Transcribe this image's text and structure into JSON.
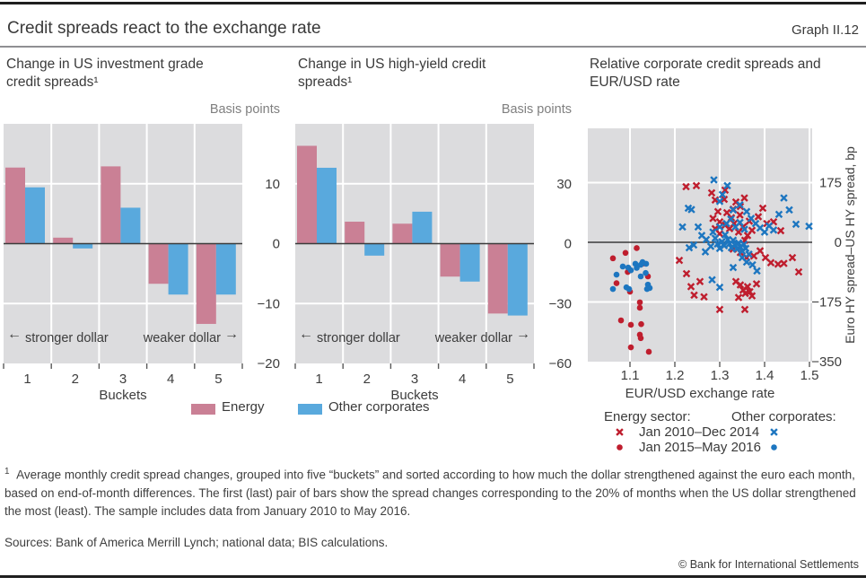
{
  "header": {
    "title": "Credit spreads react to the exchange rate",
    "graph_label": "Graph II.12"
  },
  "panels": [
    {
      "title": "Change in US investment grade credit spreads¹",
      "unit": "Basis points"
    },
    {
      "title": "Change in US high-yield credit spreads¹",
      "unit": "Basis points"
    },
    {
      "title": "Relative corporate credit spreads and EUR/USD rate"
    }
  ],
  "colors": {
    "bar_energy": "#ca8095",
    "bar_other": "#59a9dd",
    "scatter_energy": "#bf1e2e",
    "scatter_other": "#1d76c0",
    "plot_background": "#dcdcde",
    "gridline": "#ffffff",
    "zero_line": "#3a3a3a"
  },
  "chart_data": [
    {
      "type": "bar",
      "title": "Change in US investment grade credit spreads",
      "unit": "Basis points",
      "categories": [
        "1",
        "2",
        "3",
        "4",
        "5"
      ],
      "series": [
        {
          "name": "Energy",
          "color": "#ca8095",
          "values": [
            12.7,
            1,
            12.9,
            -6.7,
            -13.4
          ]
        },
        {
          "name": "Other corporates",
          "color": "#59a9dd",
          "values": [
            9.4,
            -0.8,
            6,
            -8.5,
            -8.5
          ]
        }
      ],
      "xlabel": "Buckets",
      "ylim": [
        -20,
        20
      ],
      "yticks": [
        10,
        0,
        -10,
        -20
      ],
      "annotations": {
        "left_arrow": "←",
        "left": "stronger dollar",
        "right": "weaker dollar",
        "right_arrow": "→"
      }
    },
    {
      "type": "bar",
      "title": "Change in US high-yield credit spreads",
      "unit": "Basis points",
      "categories": [
        "1",
        "2",
        "3",
        "4",
        "5"
      ],
      "series": [
        {
          "name": "Energy",
          "color": "#ca8095",
          "values": [
            49,
            11,
            10,
            -16.5,
            -35
          ]
        },
        {
          "name": "Other corporates",
          "color": "#59a9dd",
          "values": [
            38,
            -6,
            16,
            -19,
            -36
          ]
        }
      ],
      "xlabel": "Buckets",
      "ylim": [
        -60,
        60
      ],
      "yticks": [
        30,
        0,
        -30,
        -60
      ],
      "annotations": {
        "left_arrow": "←",
        "left": "stronger dollar",
        "right": "weaker dollar",
        "right_arrow": "→"
      }
    },
    {
      "type": "scatter",
      "title": "Relative corporate credit spreads and EUR/USD rate",
      "xlabel": "EUR/USD exchange rate",
      "ylabel": "Euro HY spread–US HY spread, bp",
      "xlim": [
        1.05,
        1.52
      ],
      "ylim": [
        -350,
        330
      ],
      "xticks": [
        1.1,
        1.2,
        1.3,
        1.4,
        1.5
      ],
      "yticks": [
        175,
        0,
        -175,
        -350
      ],
      "series": [
        {
          "name": "Energy sector: Jan 2010–Dec 2014",
          "marker": "x",
          "color": "#bf1e2e",
          "points": [
            [
              1.225,
              163
            ],
            [
              1.248,
              166
            ],
            [
              1.282,
              145
            ],
            [
              1.312,
              153
            ],
            [
              1.29,
              124
            ],
            [
              1.31,
              126
            ],
            [
              1.316,
              87
            ],
            [
              1.33,
              97
            ],
            [
              1.336,
              118
            ],
            [
              1.346,
              105
            ],
            [
              1.355,
              130
            ],
            [
              1.3,
              60
            ],
            [
              1.312,
              50
            ],
            [
              1.322,
              40
            ],
            [
              1.332,
              55
            ],
            [
              1.342,
              30
            ],
            [
              1.352,
              45
            ],
            [
              1.362,
              20
            ],
            [
              1.372,
              35
            ],
            [
              1.356,
              6
            ],
            [
              1.3,
              25
            ],
            [
              1.29,
              40
            ],
            [
              1.285,
              70
            ],
            [
              1.296,
              90
            ],
            [
              1.326,
              72
            ],
            [
              1.345,
              80
            ],
            [
              1.366,
              62
            ],
            [
              1.386,
              75
            ],
            [
              1.396,
              100
            ],
            [
              1.405,
              55
            ],
            [
              1.42,
              60
            ],
            [
              1.436,
              34
            ],
            [
              1.33,
              -20
            ],
            [
              1.346,
              -30
            ],
            [
              1.36,
              -45
            ],
            [
              1.376,
              -40
            ],
            [
              1.39,
              -25
            ],
            [
              1.402,
              -45
            ],
            [
              1.414,
              -60
            ],
            [
              1.43,
              -64
            ],
            [
              1.443,
              -62
            ],
            [
              1.462,
              -45
            ],
            [
              1.476,
              -87
            ],
            [
              1.21,
              -53
            ],
            [
              1.226,
              -92
            ],
            [
              1.236,
              -130
            ],
            [
              1.243,
              -155
            ],
            [
              1.265,
              -160
            ],
            [
              1.256,
              -115
            ],
            [
              1.336,
              -115
            ],
            [
              1.346,
              -125
            ],
            [
              1.352,
              -140
            ],
            [
              1.357,
              -150
            ],
            [
              1.362,
              -130
            ],
            [
              1.367,
              -145
            ],
            [
              1.372,
              -157
            ],
            [
              1.342,
              -162
            ],
            [
              1.382,
              -122
            ],
            [
              1.3,
              -197
            ],
            [
              1.356,
              -197
            ]
          ]
        },
        {
          "name": "Other corporates: Jan 2010–Dec 2014",
          "marker": "x",
          "color": "#1d76c0",
          "points": [
            [
              1.287,
              183
            ],
            [
              1.317,
              166
            ],
            [
              1.23,
              100
            ],
            [
              1.237,
              96
            ],
            [
              1.217,
              45
            ],
            [
              1.252,
              45
            ],
            [
              1.232,
              -16
            ],
            [
              1.242,
              -8
            ],
            [
              1.26,
              20
            ],
            [
              1.27,
              8
            ],
            [
              1.268,
              -28
            ],
            [
              1.28,
              -12
            ],
            [
              1.285,
              30
            ],
            [
              1.29,
              12
            ],
            [
              1.295,
              -5
            ],
            [
              1.3,
              -18
            ],
            [
              1.305,
              2
            ],
            [
              1.31,
              -10
            ],
            [
              1.312,
              22
            ],
            [
              1.318,
              8
            ],
            [
              1.322,
              -4
            ],
            [
              1.326,
              -16
            ],
            [
              1.33,
              6
            ],
            [
              1.334,
              -8
            ],
            [
              1.338,
              -20
            ],
            [
              1.342,
              -2
            ],
            [
              1.346,
              -14
            ],
            [
              1.35,
              -26
            ],
            [
              1.354,
              -6
            ],
            [
              1.358,
              -18
            ],
            [
              1.3,
              45
            ],
            [
              1.315,
              55
            ],
            [
              1.325,
              68
            ],
            [
              1.335,
              45
            ],
            [
              1.345,
              58
            ],
            [
              1.355,
              38
            ],
            [
              1.3,
              120
            ],
            [
              1.306,
              140
            ],
            [
              1.33,
              95
            ],
            [
              1.345,
              110
            ],
            [
              1.36,
              90
            ],
            [
              1.37,
              70
            ],
            [
              1.38,
              55
            ],
            [
              1.39,
              42
            ],
            [
              1.4,
              30
            ],
            [
              1.41,
              48
            ],
            [
              1.42,
              36
            ],
            [
              1.432,
              82
            ],
            [
              1.443,
              130
            ],
            [
              1.455,
              95
            ],
            [
              1.47,
              53
            ],
            [
              1.499,
              47
            ],
            [
              1.283,
              -110
            ],
            [
              1.3,
              -132
            ],
            [
              1.33,
              -74
            ],
            [
              1.36,
              -58
            ],
            [
              1.373,
              -66
            ],
            [
              1.383,
              -84
            ],
            [
              1.35,
              -45
            ],
            [
              1.365,
              -35
            ]
          ]
        },
        {
          "name": "Energy sector: Jan 2015–May 2016",
          "marker": "dot",
          "color": "#bf1e2e",
          "points": [
            [
              1.115,
              -17
            ],
            [
              1.09,
              -31
            ],
            [
              1.062,
              -47
            ],
            [
              1.1,
              -145
            ],
            [
              1.14,
              -100
            ],
            [
              1.122,
              -176
            ],
            [
              1.122,
              -192
            ],
            [
              1.08,
              -229
            ],
            [
              1.102,
              -242
            ],
            [
              1.122,
              -271
            ],
            [
              1.124,
              -281
            ],
            [
              1.102,
              -308
            ],
            [
              1.142,
              -321
            ],
            [
              1.07,
              -120
            ],
            [
              1.13,
              -62
            ],
            [
              1.125,
              -240
            ],
            [
              1.095,
              -87
            ]
          ]
        },
        {
          "name": "Other corporates: Jan 2015–May 2016",
          "marker": "dot",
          "color": "#1d76c0",
          "points": [
            [
              1.062,
              -137
            ],
            [
              1.084,
              -71
            ],
            [
              1.096,
              -74
            ],
            [
              1.102,
              -82
            ],
            [
              1.124,
              -66
            ],
            [
              1.128,
              -58
            ],
            [
              1.136,
              -63
            ],
            [
              1.092,
              -132
            ],
            [
              1.098,
              -137
            ],
            [
              1.124,
              -100
            ],
            [
              1.14,
              -124
            ],
            [
              1.144,
              -134
            ],
            [
              1.138,
              -137
            ],
            [
              1.112,
              -63
            ],
            [
              1.115,
              -75
            ],
            [
              1.135,
              -90
            ],
            [
              1.07,
              -95
            ]
          ]
        }
      ],
      "legend_position": "below"
    }
  ],
  "bar_legend": [
    {
      "label": "Energy"
    },
    {
      "label": "Other corporates"
    }
  ],
  "scatter_legend": {
    "col1": "Energy sector:",
    "col2": "Other corporates:",
    "rows": [
      {
        "label": "Jan 2010–Dec 2014",
        "marker": "x"
      },
      {
        "label": "Jan 2015–May 2016",
        "marker": "dot"
      }
    ]
  },
  "footnote": {
    "marker": "1",
    "text": "Average monthly credit spread changes, grouped into five “buckets” and sorted according to how much the dollar strengthened against the euro each month, based on end-of-month differences. The first (last) pair of bars show the spread changes corresponding to the 20% of months when the US dollar strengthened the most (least). The sample includes data from January 2010 to May 2016."
  },
  "sources": "Sources: Bank of America Merrill Lynch; national data; BIS calculations.",
  "copyright": "© Bank for International Settlements"
}
